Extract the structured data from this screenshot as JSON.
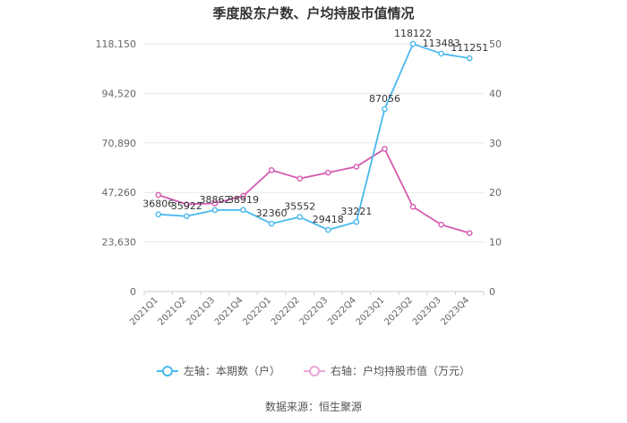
{
  "chart_data": {
    "type": "line",
    "title": "季度股东户数、户均持股市值情况",
    "categories": [
      "2021Q1",
      "2021Q2",
      "2021Q3",
      "2021Q4",
      "2022Q1",
      "2022Q2",
      "2022Q3",
      "2022Q4",
      "2023Q1",
      "2023Q2",
      "2023Q3",
      "2023Q4"
    ],
    "left_axis": {
      "min": 0,
      "max": 118150,
      "ticks": [
        "0",
        "23,630",
        "47,260",
        "70,890",
        "94,520",
        "118,150"
      ]
    },
    "right_axis": {
      "min": 0,
      "max": 50,
      "ticks": [
        "0",
        "10",
        "20",
        "30",
        "40",
        "50"
      ]
    },
    "series": [
      {
        "name": "左轴：本期数（户）",
        "axis": "left",
        "color": "#4ab8ef",
        "values": [
          36806,
          35922,
          38862,
          38919,
          32360,
          35552,
          29418,
          33221,
          87056,
          118122,
          113483,
          111251
        ],
        "labels": [
          "36806",
          "35922",
          "38862",
          "38919",
          "32360",
          "35552",
          "29418",
          "33221",
          "87056",
          "118122",
          "113483",
          "111251"
        ]
      },
      {
        "name": "右轴：户均持股市值（万元）",
        "axis": "right",
        "color": "#d45bb0",
        "values": [
          19.5,
          17.6,
          17.8,
          19.3,
          24.5,
          22.8,
          24.0,
          25.2,
          28.8,
          17.1,
          13.5,
          11.8
        ]
      }
    ],
    "grid": true,
    "legend_position": "bottom"
  },
  "source": "数据来源：恒生聚源"
}
